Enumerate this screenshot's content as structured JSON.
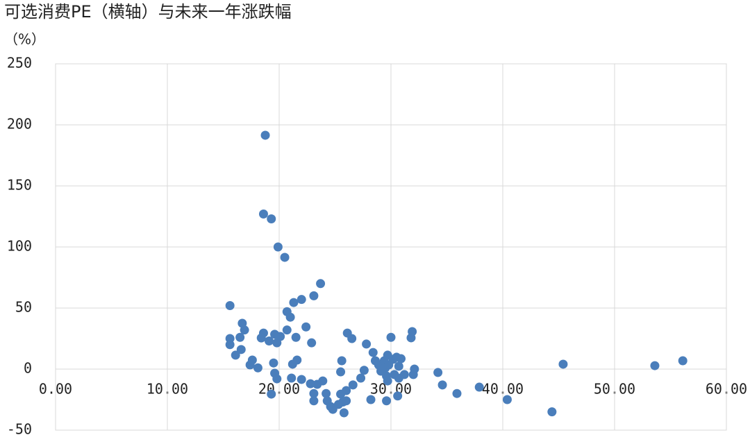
{
  "chart_data": {
    "type": "scatter",
    "title": "可选消费PE（横轴）与未来一年涨跌幅",
    "y_label": "（%）",
    "x": [
      18.76,
      18.6,
      19.3,
      19.9,
      20.5,
      15.6,
      23.7,
      23.1,
      22.0,
      21.3,
      20.7,
      21.0,
      16.7,
      16.9,
      20.7,
      22.4,
      18.6,
      19.6,
      20.1,
      21.5,
      18.4,
      19.1,
      19.8,
      15.6,
      15.6,
      16.5,
      16.6,
      16.1,
      22.9,
      26.1,
      26.5,
      27.8,
      28.4,
      30.0,
      31.9,
      31.8,
      17.6,
      17.4,
      18.1,
      19.5,
      21.6,
      21.2,
      25.6,
      28.6,
      28.9,
      29.4,
      29.7,
      30.2,
      30.5,
      30.9,
      29.5,
      29.8,
      30.7,
      31.2,
      32.1,
      32.0,
      27.6,
      29.1,
      29.6,
      30.3,
      30.7,
      19.6,
      19.8,
      21.1,
      22.0,
      22.8,
      23.4,
      23.9,
      25.5,
      26.6,
      27.3,
      34.2,
      34.6,
      35.9,
      37.9,
      40.4,
      44.4,
      45.4,
      53.6,
      56.1,
      19.3,
      23.1,
      23.1,
      24.2,
      24.3,
      24.6,
      24.8,
      25.3,
      25.7,
      25.5,
      26.0,
      26.0,
      25.8,
      28.2,
      29.6,
      30.6,
      29.7
    ],
    "values": [
      191.5,
      127,
      123,
      100,
      91.5,
      52,
      70,
      60,
      57,
      54.5,
      47,
      42.5,
      37.5,
      32,
      32,
      34.5,
      29.5,
      28.5,
      26.7,
      26,
      25.5,
      23,
      21.5,
      25,
      20,
      26,
      16,
      11.4,
      21.5,
      29.5,
      25,
      20.5,
      13.6,
      26,
      30.7,
      25.6,
      7.4,
      3.4,
      1,
      5,
      7.4,
      4,
      6.8,
      6.8,
      3.4,
      6.8,
      11.4,
      8,
      9.7,
      8.5,
      1,
      3.4,
      2.3,
      -4.5,
      0,
      -4.5,
      -1,
      -1.7,
      -5.7,
      -4.5,
      -7.4,
      -3.4,
      -8,
      -7.4,
      -8.5,
      -12,
      -12.5,
      -9.7,
      -2.3,
      -13,
      -7.4,
      -2.8,
      -13,
      -20,
      -14.8,
      -25,
      -35,
      4,
      2.8,
      6.8,
      -20.5,
      -20,
      -26,
      -20,
      -26,
      -30.7,
      -33,
      -29,
      -27,
      -20.5,
      -17.6,
      -26,
      -35.8,
      -25,
      -26,
      -22,
      -9.7
    ],
    "color": "#4a7ebb",
    "xlim": [
      0,
      60
    ],
    "xticks": [
      {
        "value": 0,
        "label": "0.00"
      },
      {
        "value": 10,
        "label": "10.00"
      },
      {
        "value": 20,
        "label": "20.00"
      },
      {
        "value": 30,
        "label": "30.00"
      },
      {
        "value": 40,
        "label": "40.00"
      },
      {
        "value": 50,
        "label": "50.00"
      },
      {
        "value": 60,
        "label": "60.00"
      }
    ],
    "ylim": [
      -50,
      250
    ],
    "yticks": [
      -50,
      0,
      50,
      100,
      150,
      200,
      250
    ],
    "grid": true
  }
}
